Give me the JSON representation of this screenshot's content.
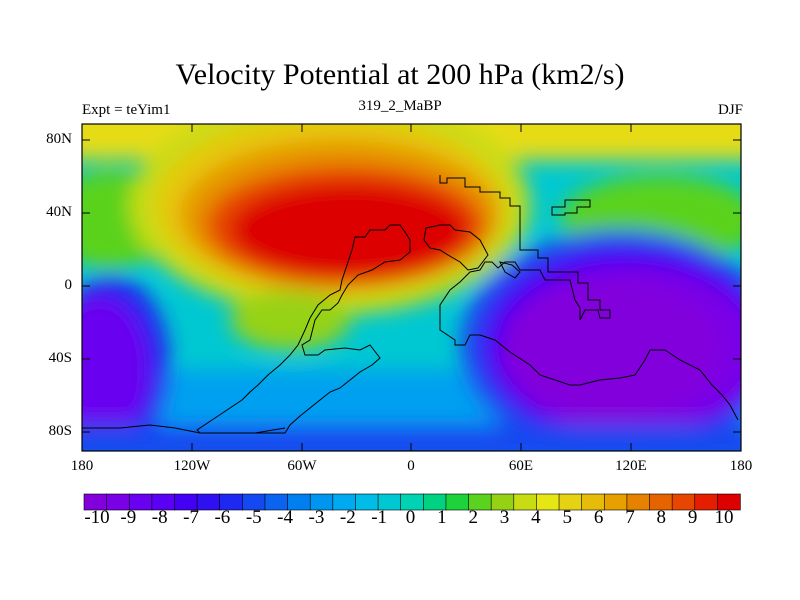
{
  "title": "Velocity Potential at 200 hPa (km2/s)",
  "left_string": "Expt = teYim1",
  "center_string": "319_2_MaBP",
  "right_string": "DJF",
  "lat_labels": [
    "80N",
    "40N",
    "0",
    "40S",
    "80S"
  ],
  "lon_labels": [
    "180",
    "120W",
    "60W",
    "0",
    "60E",
    "120E",
    "180"
  ],
  "colorbar": {
    "labels": [
      "-10",
      "-9",
      "-8",
      "-7",
      "-6",
      "-5",
      "-4",
      "-3",
      "-2",
      "-1",
      "0",
      "1",
      "2",
      "3",
      "4",
      "5",
      "6",
      "7",
      "8",
      "9",
      "10"
    ],
    "colors": [
      "#8200dc",
      "#7a00e6",
      "#6a00f0",
      "#5a00f5",
      "#4400f5",
      "#2e10f0",
      "#1e28f0",
      "#1448f0",
      "#0a64f0",
      "#0080f0",
      "#0096f0",
      "#00aaf0",
      "#00bce6",
      "#00c8d2",
      "#00d2b4",
      "#00d282",
      "#1ed23c",
      "#5ad21e",
      "#96d214",
      "#c8dc14",
      "#e6e614",
      "#e6d214",
      "#e6bc0a",
      "#e6a000",
      "#e68200",
      "#e66400",
      "#e64600",
      "#e61e00",
      "#dc0000"
    ],
    "levels_count": 29
  },
  "chart_data": {
    "type": "heatmap",
    "title": "Velocity Potential at 200 hPa (km2/s)",
    "variable": "velocity potential",
    "level": "200 hPa",
    "units": "km2/s",
    "season": "DJF",
    "lon_range": [
      -180,
      180
    ],
    "lat_range": [
      -90,
      90
    ],
    "value_range": [
      -10,
      10
    ],
    "features": [
      {
        "name": "maximum",
        "lon": -45,
        "lat": 25,
        "value": 10
      },
      {
        "name": "minimum",
        "lon": 115,
        "lat": -30,
        "value": -10
      },
      {
        "name": "minimum",
        "lon": -175,
        "lat": -40,
        "value": -10
      }
    ]
  }
}
